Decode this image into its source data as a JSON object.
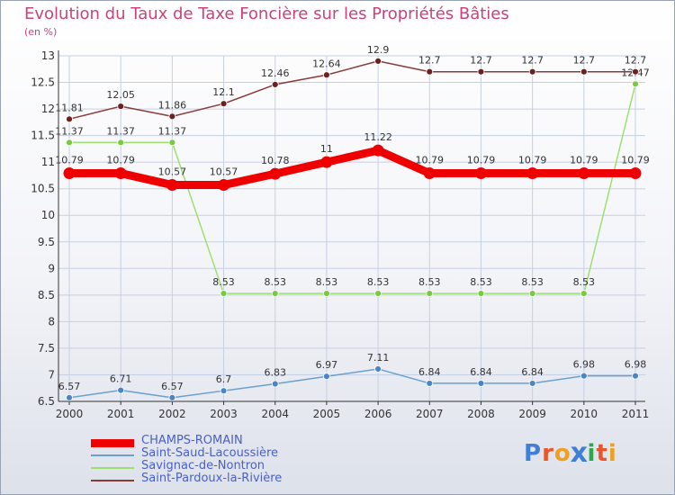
{
  "title": "Evolution du Taux de Taxe Foncière sur les Propriétés Bâties",
  "unit": "(en %)",
  "logo": "Proxiti",
  "colors": {
    "title": "#c8437b",
    "legend_text": "#4a60c8",
    "grid": "#c7cfe3",
    "axis": "#333333"
  },
  "chart_data": {
    "type": "line",
    "title": "Evolution du Taux de Taxe Foncière sur les Propriétés Bâties",
    "ylabel": "(en %)",
    "xlabel": "",
    "x": [
      "2000",
      "2001",
      "2002",
      "2003",
      "2004",
      "2005",
      "2006",
      "2007",
      "2008",
      "2009",
      "2010",
      "2011"
    ],
    "ylim": [
      6.5,
      13
    ],
    "yticks": [
      "6.5",
      "7",
      "7.5",
      "8",
      "8.5",
      "9",
      "9.5",
      "10",
      "10.5",
      "11",
      "11.5",
      "12",
      "12.5",
      "13"
    ],
    "grid": true,
    "legend_position": "bottom-left",
    "series": [
      {
        "name": "CHAMPS-ROMAIN",
        "color": "#ee0000",
        "marker": "#ee0000",
        "emphasis": true,
        "values": [
          10.79,
          10.79,
          10.57,
          10.57,
          10.78,
          11,
          11.22,
          10.79,
          10.79,
          10.79,
          10.79,
          10.79
        ],
        "labels": [
          "10.79",
          "10.79",
          "10.57",
          "10.57",
          "10.78",
          "11",
          "11.22",
          "10.79",
          "10.79",
          "10.79",
          "10.79",
          "10.79"
        ]
      },
      {
        "name": "Saint-Saud-Lacoussière",
        "color": "#6a9fd0",
        "marker": "#4a86c6",
        "values": [
          6.57,
          6.71,
          6.57,
          6.7,
          6.83,
          6.97,
          7.11,
          6.84,
          6.84,
          6.84,
          6.98,
          6.98
        ],
        "labels": [
          "6.57",
          "6.71",
          "6.57",
          "6.7",
          "6.83",
          "6.97",
          "7.11",
          "6.84",
          "6.84",
          "6.84",
          "6.98",
          "6.98"
        ]
      },
      {
        "name": "Savignac-de-Nontron",
        "color": "#9ee070",
        "marker": "#7ac943",
        "values": [
          11.37,
          11.37,
          11.37,
          8.53,
          8.53,
          8.53,
          8.53,
          8.53,
          8.53,
          8.53,
          8.53,
          12.47
        ],
        "labels": [
          "11.37",
          "11.37",
          "11.37",
          "8.53",
          "8.53",
          "8.53",
          "8.53",
          "8.53",
          "8.53",
          "8.53",
          "8.53",
          "12.47"
        ]
      },
      {
        "name": "Saint-Pardoux-la-Rivière",
        "color": "#8a3a3a",
        "marker": "#6e1f1f",
        "values": [
          11.81,
          12.05,
          11.86,
          12.1,
          12.46,
          12.64,
          12.9,
          12.7,
          12.7,
          12.7,
          12.7,
          12.7
        ],
        "labels": [
          "11.81",
          "12.05",
          "11.86",
          "12.1",
          "12.46",
          "12.64",
          "12.9",
          "12.7",
          "12.7",
          "12.7",
          "12.7",
          "12.7"
        ]
      }
    ]
  }
}
